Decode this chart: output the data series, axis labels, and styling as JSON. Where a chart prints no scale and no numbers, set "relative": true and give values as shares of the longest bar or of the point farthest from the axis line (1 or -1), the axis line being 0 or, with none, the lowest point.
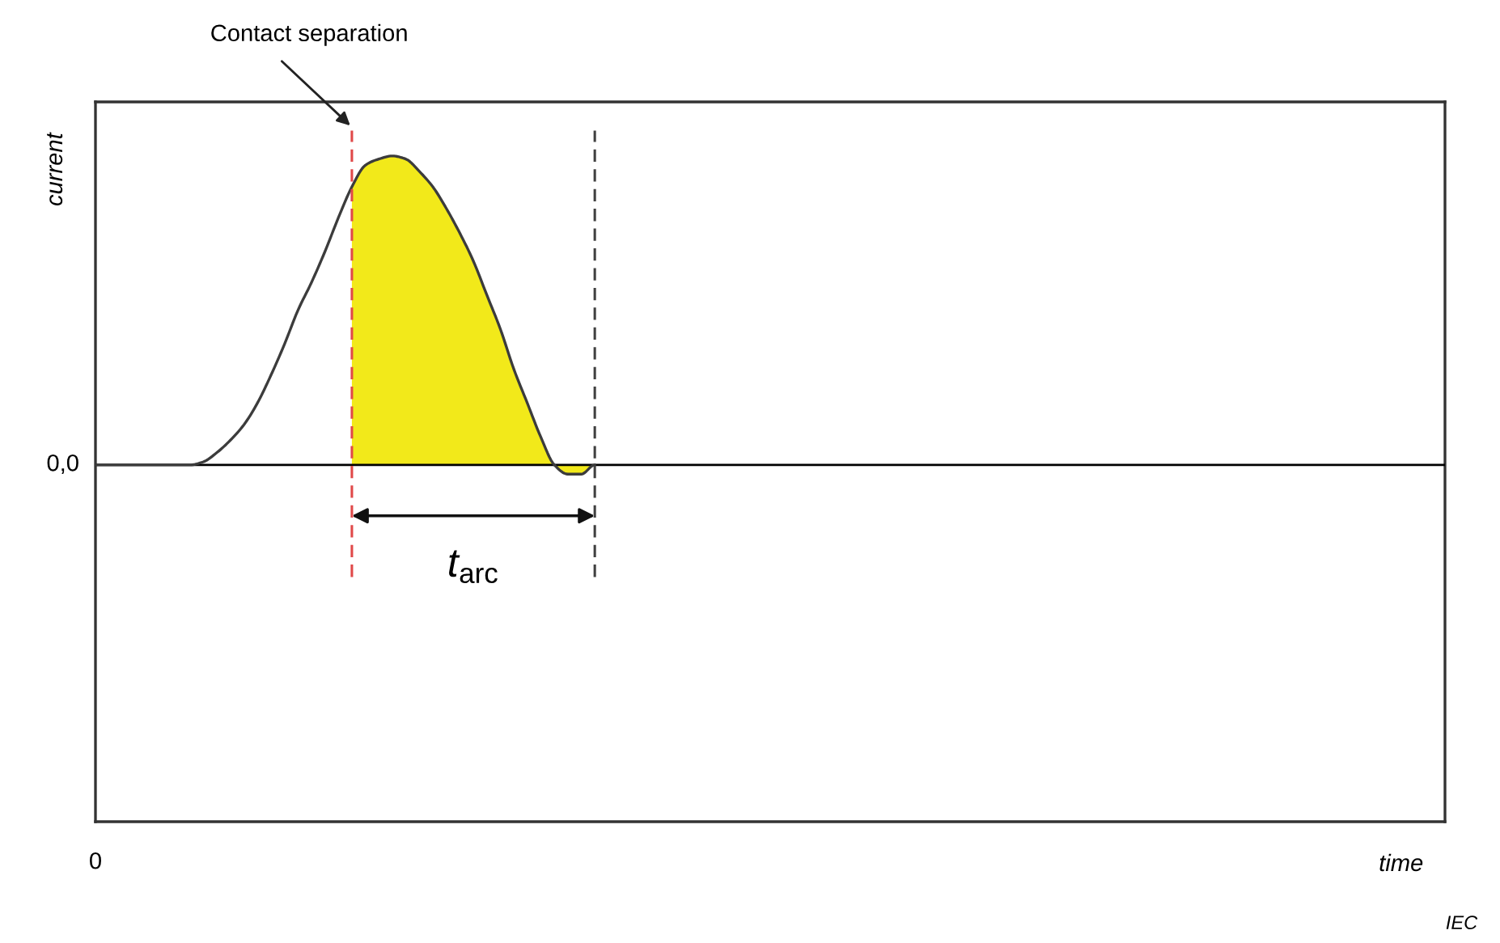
{
  "chart_data": {
    "type": "line",
    "relative": true,
    "ylabel": "current",
    "categories": [
      null,
      null,
      null,
      null,
      null,
      null,
      null,
      null,
      null,
      null,
      null,
      null,
      null,
      null,
      null,
      null,
      null,
      null,
      null,
      null,
      null,
      null,
      null,
      null,
      null,
      null,
      null,
      null,
      null,
      null,
      null,
      null,
      null,
      null,
      null,
      null,
      null,
      null,
      null,
      null,
      null,
      null,
      null,
      null,
      null,
      null,
      null,
      null,
      null,
      null,
      null,
      null,
      null,
      null,
      null,
      null,
      null,
      null,
      null,
      null,
      null,
      null,
      null,
      null,
      null,
      null,
      null,
      null,
      null,
      null,
      null,
      null,
      null,
      null,
      null,
      null,
      null,
      null,
      null,
      null,
      null,
      null,
      null,
      null,
      null,
      null,
      null,
      null,
      null,
      null,
      null,
      null,
      null,
      null,
      null,
      null,
      null,
      null,
      null,
      null,
      null
    ],
    "series": [
      {
        "color": "#3c3c3c",
        "values": [
          0,
          0,
          0,
          0,
          0,
          0,
          0,
          0,
          0.01,
          0.04,
          0.08,
          0.13,
          0.2,
          0.29,
          0.39,
          0.5,
          0.59,
          0.69,
          0.8,
          0.9,
          0.97,
          0.99,
          1,
          0.99,
          0.95,
          0.9,
          0.83,
          0.75,
          0.66,
          0.55,
          0.44,
          0.31,
          0.2,
          0.09,
          0,
          -0.03,
          -0.03,
          0,
          null,
          null,
          null,
          null,
          null,
          null,
          null,
          null,
          null,
          null,
          null,
          null,
          null,
          null,
          null,
          null,
          null,
          null,
          null,
          null,
          null,
          null,
          null,
          null,
          null,
          null,
          null,
          null,
          null,
          null,
          null,
          null,
          null,
          null,
          null,
          null,
          null,
          null,
          null,
          null,
          null,
          null,
          null,
          null,
          null,
          null,
          null,
          null,
          null,
          null,
          null,
          null,
          null,
          null,
          null,
          null,
          null,
          null,
          null,
          null,
          null,
          null,
          null
        ]
      },
      {
        "type": "area",
        "color": "#f2e91a",
        "values": [
          null,
          null,
          null,
          null,
          null,
          null,
          null,
          null,
          null,
          null,
          null,
          null,
          null,
          null,
          null,
          null,
          null,
          null,
          null,
          0.9,
          0.97,
          0.99,
          1,
          0.99,
          0.95,
          0.9,
          0.83,
          0.75,
          0.66,
          0.55,
          0.44,
          0.31,
          0.2,
          0.09,
          0,
          -0.03,
          -0.03,
          0,
          null,
          null,
          null,
          null,
          null,
          null,
          null,
          null,
          null,
          null,
          null,
          null,
          null,
          null,
          null,
          null,
          null,
          null,
          null,
          null,
          null,
          null,
          null,
          null,
          null,
          null,
          null,
          null,
          null,
          null,
          null,
          null,
          null,
          null,
          null,
          null,
          null,
          null,
          null,
          null,
          null,
          null,
          null,
          null,
          null,
          null,
          null,
          null,
          null,
          null,
          null,
          null,
          null,
          null,
          null,
          null,
          null,
          null,
          null,
          null,
          null,
          null,
          null
        ]
      }
    ],
    "annotations": [
      "Contact separation",
      "t$_{arc}$",
      "0,0",
      "0",
      "time",
      "IEC"
    ]
  }
}
